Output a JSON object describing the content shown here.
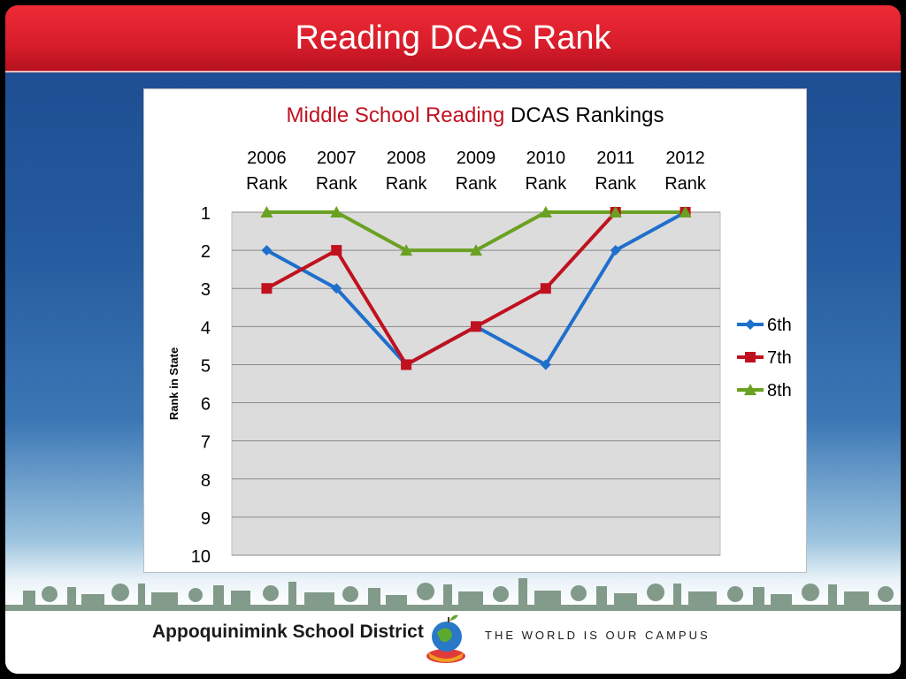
{
  "slide": {
    "title": "Reading DCAS Rank",
    "district_name": "Appoquinimink School District",
    "tagline": "THE WORLD IS OUR CAMPUS"
  },
  "chart_data": {
    "type": "line",
    "title_part1": "Middle School Reading",
    "title_part2": " DCAS Rankings",
    "title_colors": {
      "part1": "#c0111f",
      "part2": "#000000"
    },
    "x_tick_lines": [
      [
        "2006",
        "Rank"
      ],
      [
        "2007",
        "Rank"
      ],
      [
        "2008",
        "Rank"
      ],
      [
        "2009",
        "Rank"
      ],
      [
        "2010",
        "Rank"
      ],
      [
        "2011",
        "Rank"
      ],
      [
        "2012",
        "Rank"
      ]
    ],
    "ylabel": "Rank in State",
    "ylim": [
      1,
      10
    ],
    "y_inverted": true,
    "y_ticks": [
      1,
      2,
      3,
      4,
      5,
      6,
      7,
      8,
      9,
      10
    ],
    "grid": true,
    "legend_position": "right",
    "series": [
      {
        "name": "6th",
        "color": "#1f6fcc",
        "marker": "diamond",
        "values": [
          2,
          3,
          5,
          4,
          5,
          2,
          1
        ]
      },
      {
        "name": "7th",
        "color": "#c0111f",
        "marker": "square",
        "values": [
          3,
          2,
          5,
          4,
          3,
          1,
          1
        ]
      },
      {
        "name": "8th",
        "color": "#6aa121",
        "marker": "triangle",
        "values": [
          1,
          1,
          2,
          2,
          1,
          1,
          1
        ]
      }
    ]
  }
}
